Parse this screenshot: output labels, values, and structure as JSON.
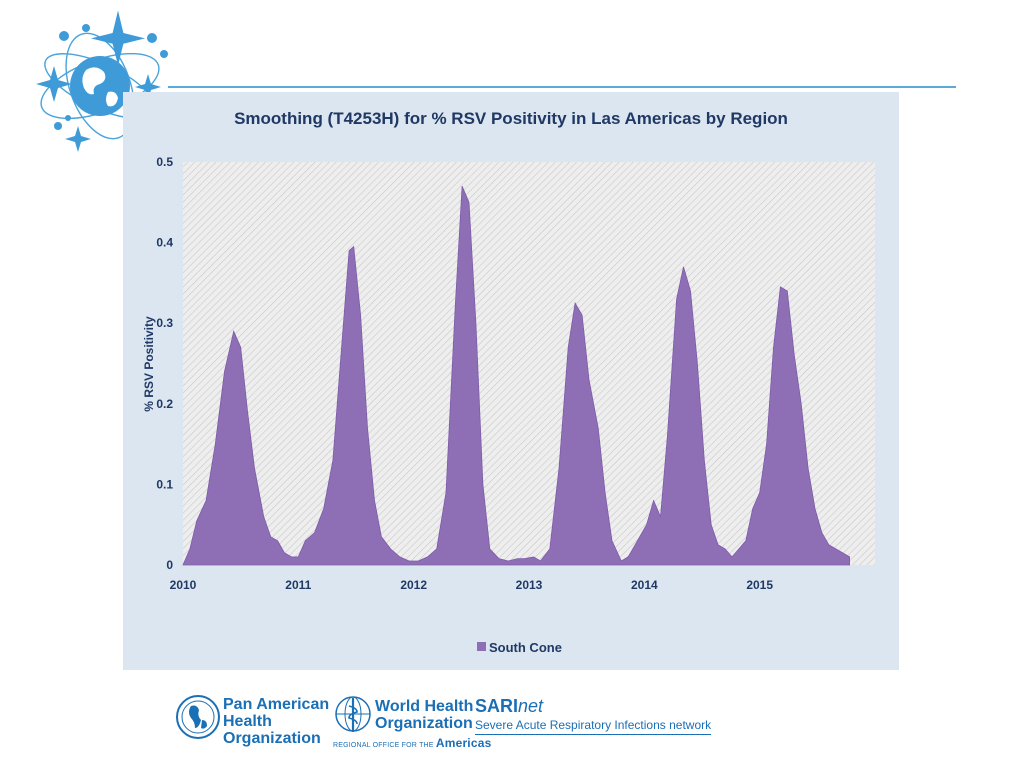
{
  "chart_data": {
    "type": "area",
    "title": "Smoothing (T4253H) for % RSV Positivity in Las Americas by Region",
    "xlabel": "",
    "ylabel": "% RSV Positivity",
    "xlim": [
      2010,
      2016
    ],
    "ylim": [
      0,
      0.5
    ],
    "yticks": [
      "0",
      "0.1",
      "0.2",
      "0.3",
      "0.4",
      "0.5"
    ],
    "xticks": [
      "2010",
      "2011",
      "2012",
      "2013",
      "2014",
      "2015"
    ],
    "grid": false,
    "legend": "bottom-center",
    "series": [
      {
        "name": "South Cone",
        "color": "#8e6fb5",
        "points": [
          [
            2010.0,
            0.0
          ],
          [
            2010.06,
            0.02
          ],
          [
            2010.12,
            0.055
          ],
          [
            2010.2,
            0.08
          ],
          [
            2010.28,
            0.15
          ],
          [
            2010.36,
            0.24
          ],
          [
            2010.44,
            0.29
          ],
          [
            2010.5,
            0.27
          ],
          [
            2010.56,
            0.19
          ],
          [
            2010.62,
            0.12
          ],
          [
            2010.7,
            0.06
          ],
          [
            2010.76,
            0.035
          ],
          [
            2010.82,
            0.03
          ],
          [
            2010.88,
            0.015
          ],
          [
            2010.94,
            0.01
          ],
          [
            2011.0,
            0.01
          ],
          [
            2011.06,
            0.03
          ],
          [
            2011.14,
            0.04
          ],
          [
            2011.22,
            0.07
          ],
          [
            2011.3,
            0.13
          ],
          [
            2011.38,
            0.28
          ],
          [
            2011.44,
            0.39
          ],
          [
            2011.48,
            0.395
          ],
          [
            2011.54,
            0.31
          ],
          [
            2011.6,
            0.17
          ],
          [
            2011.66,
            0.08
          ],
          [
            2011.72,
            0.035
          ],
          [
            2011.8,
            0.02
          ],
          [
            2011.88,
            0.01
          ],
          [
            2011.96,
            0.005
          ],
          [
            2012.04,
            0.005
          ],
          [
            2012.12,
            0.01
          ],
          [
            2012.2,
            0.02
          ],
          [
            2012.28,
            0.09
          ],
          [
            2012.36,
            0.32
          ],
          [
            2012.42,
            0.47
          ],
          [
            2012.48,
            0.45
          ],
          [
            2012.54,
            0.3
          ],
          [
            2012.6,
            0.1
          ],
          [
            2012.66,
            0.02
          ],
          [
            2012.74,
            0.008
          ],
          [
            2012.82,
            0.005
          ],
          [
            2012.9,
            0.008
          ],
          [
            2012.96,
            0.008
          ],
          [
            2013.04,
            0.01
          ],
          [
            2013.1,
            0.005
          ],
          [
            2013.18,
            0.02
          ],
          [
            2013.26,
            0.12
          ],
          [
            2013.34,
            0.27
          ],
          [
            2013.4,
            0.325
          ],
          [
            2013.46,
            0.31
          ],
          [
            2013.52,
            0.23
          ],
          [
            2013.6,
            0.17
          ],
          [
            2013.66,
            0.09
          ],
          [
            2013.72,
            0.03
          ],
          [
            2013.8,
            0.005
          ],
          [
            2013.86,
            0.01
          ],
          [
            2013.94,
            0.03
          ],
          [
            2014.02,
            0.05
          ],
          [
            2014.08,
            0.08
          ],
          [
            2014.14,
            0.06
          ],
          [
            2014.2,
            0.16
          ],
          [
            2014.28,
            0.33
          ],
          [
            2014.34,
            0.37
          ],
          [
            2014.4,
            0.34
          ],
          [
            2014.46,
            0.25
          ],
          [
            2014.52,
            0.13
          ],
          [
            2014.58,
            0.05
          ],
          [
            2014.64,
            0.025
          ],
          [
            2014.7,
            0.02
          ],
          [
            2014.76,
            0.01
          ],
          [
            2014.82,
            0.02
          ],
          [
            2014.88,
            0.03
          ],
          [
            2014.94,
            0.07
          ],
          [
            2015.0,
            0.09
          ],
          [
            2015.06,
            0.15
          ],
          [
            2015.12,
            0.27
          ],
          [
            2015.18,
            0.345
          ],
          [
            2015.24,
            0.34
          ],
          [
            2015.3,
            0.26
          ],
          [
            2015.36,
            0.2
          ],
          [
            2015.42,
            0.12
          ],
          [
            2015.48,
            0.07
          ],
          [
            2015.54,
            0.04
          ],
          [
            2015.6,
            0.025
          ],
          [
            2015.66,
            0.02
          ],
          [
            2015.72,
            0.015
          ],
          [
            2015.78,
            0.01
          ]
        ]
      }
    ]
  },
  "footer": {
    "paho": [
      "Pan American",
      "Health",
      "Organization"
    ],
    "who": [
      "World Health",
      "Organization"
    ],
    "who_sub_prefix": "REGIONAL OFFICE FOR THE",
    "who_sub_region": "Americas",
    "sari_bold": "SARI",
    "sari_italic": "net",
    "sari_sub": "Severe Acute Respiratory Infections network"
  },
  "colors": {
    "accent_line": "#5aa9d6",
    "panel_bg": "#dce6f1",
    "text_dark": "#1f3864",
    "logo_blue": "#1b6fb5"
  },
  "icons": [
    "globe-satellite-logo",
    "paho-emblem-icon",
    "who-emblem-icon"
  ]
}
